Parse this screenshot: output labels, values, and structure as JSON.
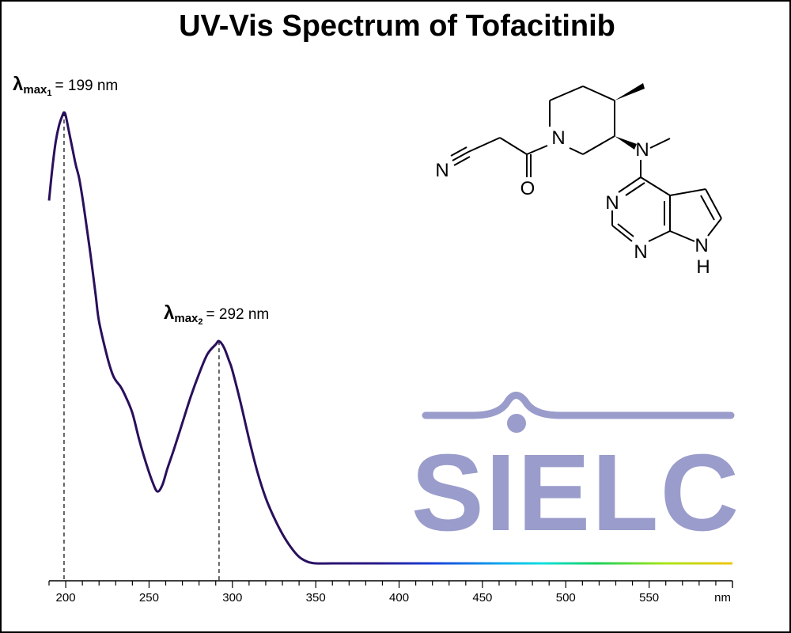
{
  "chart_data": {
    "type": "line",
    "title": "UV-Vis Spectrum of Tofacitinib",
    "x_unit": "nm",
    "xlim": [
      190,
      600
    ],
    "x_ticks": [
      200,
      250,
      300,
      350,
      400,
      450,
      500,
      550
    ],
    "grid": false,
    "series": [
      {
        "x": [
          190,
          192,
          194,
          196,
          198,
          199,
          200,
          202,
          204,
          206,
          208,
          210,
          212,
          215,
          218,
          220,
          225,
          228,
          230,
          233,
          236,
          240,
          244,
          248,
          252,
          255,
          258,
          261,
          265,
          270,
          275,
          280,
          285,
          290,
          292,
          295,
          298,
          300,
          305,
          310,
          315,
          320,
          325,
          330,
          335,
          340,
          345,
          350,
          360,
          380,
          400,
          450,
          500,
          550,
          600
        ],
        "y": [
          0.82,
          0.92,
          1.0,
          1.05,
          1.08,
          1.09,
          1.08,
          1.03,
          0.98,
          0.93,
          0.89,
          0.83,
          0.76,
          0.65,
          0.53,
          0.45,
          0.34,
          0.29,
          0.27,
          0.25,
          0.22,
          0.17,
          0.09,
          0.02,
          -0.04,
          -0.07,
          -0.05,
          0.0,
          0.06,
          0.14,
          0.22,
          0.29,
          0.35,
          0.38,
          0.39,
          0.37,
          0.33,
          0.3,
          0.2,
          0.09,
          -0.01,
          -0.09,
          -0.15,
          -0.2,
          -0.24,
          -0.27,
          -0.285,
          -0.29,
          -0.29,
          -0.29,
          -0.29,
          -0.29,
          -0.29,
          -0.29,
          -0.29
        ]
      }
    ],
    "annotations": [
      {
        "lambda": "λ",
        "sub": "max",
        "index": "1",
        "value_text": "= 199 nm",
        "x": 199
      },
      {
        "lambda": "λ",
        "sub": "max",
        "index": "2",
        "value_text": "= 292 nm",
        "x": 292
      }
    ]
  },
  "structure": {
    "atoms": {
      "n_piperidine": "N",
      "n_nitrile": "N",
      "o_carbonyl": "O",
      "n_methylamine": "N",
      "n_pyrimidine_top": "N",
      "n_pyrimidine_bottom": "N",
      "nh_pyrrole": "N",
      "h_pyrrole": "H"
    }
  },
  "watermark": {
    "text": "SIELC",
    "color": "#9a9ccb"
  },
  "colors": {
    "curve_uv": "#2a0f5c",
    "axis": "#000000"
  }
}
